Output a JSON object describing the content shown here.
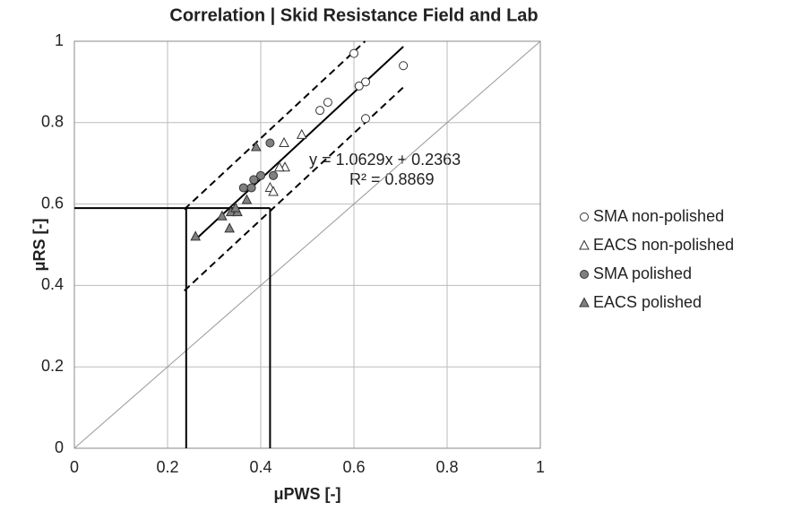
{
  "chart_data": {
    "type": "scatter",
    "title": "Correlation | Skid Resistance Field and Lab",
    "x_label": "μPWS [-]",
    "y_label": "μRS [-]",
    "xlim": [
      0,
      1
    ],
    "ylim": [
      0,
      1
    ],
    "xticks": [
      0,
      0.2,
      0.4,
      0.6,
      0.8,
      1
    ],
    "yticks": [
      0,
      0.2,
      0.4,
      0.6,
      0.8,
      1
    ],
    "grid": true,
    "legend": "right",
    "annotations": [
      "y = 1.0629x + 0.2363",
      "R² = 0.8869"
    ],
    "series": [
      {
        "name": "SMA non-polished",
        "marker": "circle",
        "color": "#ffffff",
        "x": [
          0.6,
          0.706,
          0.625,
          0.611,
          0.544,
          0.527,
          0.625
        ],
        "values": [
          0.97,
          0.94,
          0.9,
          0.89,
          0.85,
          0.83,
          0.81
        ]
      },
      {
        "name": "EACS non-polished",
        "marker": "triangle",
        "color": "#ffffff",
        "x": [
          0.488,
          0.45,
          0.452,
          0.44,
          0.42,
          0.427
        ],
        "values": [
          0.77,
          0.75,
          0.69,
          0.69,
          0.64,
          0.63
        ]
      },
      {
        "name": "SMA polished",
        "marker": "circle",
        "color": "#808080",
        "x": [
          0.42,
          0.427,
          0.4,
          0.385,
          0.363,
          0.38
        ],
        "values": [
          0.75,
          0.67,
          0.67,
          0.66,
          0.64,
          0.64
        ]
      },
      {
        "name": "EACS polished",
        "marker": "triangle",
        "color": "#808080",
        "x": [
          0.39,
          0.26,
          0.317,
          0.333,
          0.336,
          0.35,
          0.37,
          0.346
        ],
        "values": [
          0.74,
          0.52,
          0.57,
          0.54,
          0.58,
          0.58,
          0.61,
          0.59
        ]
      }
    ],
    "lines": [
      {
        "x": [
          0,
          1
        ],
        "y": [
          0,
          1
        ],
        "style": "thin"
      },
      {
        "x": [
          0.26,
          0.706
        ],
        "y": [
          0.5127,
          0.9867
        ],
        "style": "solid"
      },
      {
        "x": [
          0.236,
          0.624
        ],
        "y": [
          0.587,
          1
        ],
        "style": "dashed"
      },
      {
        "x": [
          0.236,
          0.709
        ],
        "y": [
          0.387,
          0.89
        ],
        "style": "dashed"
      },
      {
        "x": [
          0,
          0.42
        ],
        "y": [
          0.59,
          0.59
        ],
        "style": "solid"
      },
      {
        "x": [
          0.24,
          0.24
        ],
        "y": [
          0,
          0.59
        ],
        "style": "solid"
      },
      {
        "x": [
          0.42,
          0.42
        ],
        "y": [
          0,
          0.59
        ],
        "style": "solid"
      }
    ]
  }
}
